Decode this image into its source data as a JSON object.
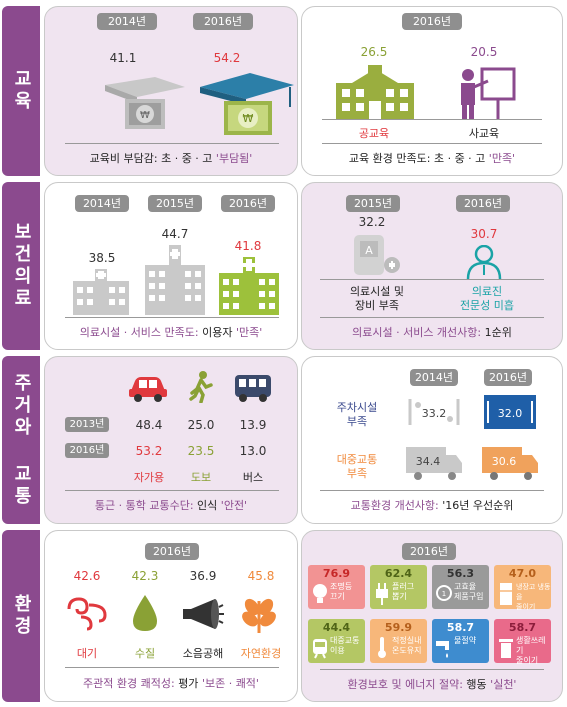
{
  "sections": {
    "edu": {
      "tab": "교육",
      "left": {
        "year1": "2014년",
        "year2": "2016년",
        "val1": "41.1",
        "val2": "54.2",
        "caption_prefix": "교육비 부담감: ",
        "caption_mid": "초 · 중 · 고 ",
        "caption_hl": "'부담됨'"
      },
      "right": {
        "year": "2016년",
        "val1": "26.5",
        "val2": "20.5",
        "label1": "공교육",
        "label2": "사교육",
        "caption_prefix": "교육 환경 만족도: ",
        "caption_mid": "초 · 중 · 고 ",
        "caption_hl": "'만족'"
      }
    },
    "health": {
      "tab": "보건의료",
      "left": {
        "year1": "2014년",
        "year2": "2015년",
        "year3": "2016년",
        "val1": "38.5",
        "val2": "44.7",
        "val3": "41.8",
        "caption_prefix": "의료시설 · 서비스 만족도: ",
        "caption_mid": "이용자 ",
        "caption_hl": "'만족'"
      },
      "right": {
        "year1": "2015년",
        "year2": "2016년",
        "val1": "32.2",
        "val2": "30.7",
        "label1_line1": "의료시설 및",
        "label1_line2": "장비 부족",
        "label2_line1": "의료진",
        "label2_line2": "전문성 미흡",
        "caption_prefix": "의료시설 · 서비스 개선사항: ",
        "caption_hl": "1순위"
      }
    },
    "transport": {
      "tab": "주거와 교통",
      "left": {
        "row1_year": "2013년",
        "row2_year": "2016년",
        "row1": [
          "48.4",
          "25.0",
          "13.9"
        ],
        "row2": [
          "53.2",
          "23.5",
          "13.0"
        ],
        "labels": [
          "자가용",
          "도보",
          "버스"
        ],
        "caption_prefix": "통근 · 통학 교통수단: ",
        "caption_mid": "인식 ",
        "caption_hl": "'안전'"
      },
      "right": {
        "year1": "2014년",
        "year2": "2016년",
        "item1_line1": "주차시설",
        "item1_line2": "부족",
        "item2_line1": "대중교통",
        "item2_line2": "부족",
        "v11": "33.2",
        "v12": "32.0",
        "v21": "34.4",
        "v22": "30.6",
        "caption_prefix": "교통환경 개선사항: ",
        "caption_hl": "'16년 우선순위"
      }
    },
    "env": {
      "tab": "환경",
      "left": {
        "year": "2016년",
        "vals": [
          "42.6",
          "42.3",
          "36.9",
          "45.8"
        ],
        "labels": [
          "대기",
          "수질",
          "소음공해",
          "자연환경"
        ],
        "caption_prefix": "주관적 환경 쾌적성: ",
        "caption_mid": "평가 ",
        "caption_hl": "'보존 · 쾌적'"
      },
      "right": {
        "year": "2016년",
        "cells": [
          {
            "v": "76.9",
            "t1": "조명등",
            "t2": "끄기"
          },
          {
            "v": "62.4",
            "t1": "플러그",
            "t2": "뽑기"
          },
          {
            "v": "56.3",
            "t1": "고효율",
            "t2": "제품구입"
          },
          {
            "v": "47.0",
            "t1": "냉장고 냉동을",
            "t2": "줄이기"
          },
          {
            "v": "44.4",
            "t1": "대중교통",
            "t2": "이용"
          },
          {
            "v": "59.9",
            "t1": "적정실내",
            "t2": "온도유지"
          },
          {
            "v": "58.7",
            "t1": "물절약",
            "t2": ""
          },
          {
            "v": "58.7",
            "t1": "생활쓰레기",
            "t2": "줄이기"
          }
        ],
        "caption_prefix": "환경보호 및 에너지 절약: ",
        "caption_mid": "행동 ",
        "caption_hl": "'실천'"
      }
    }
  },
  "colors": {
    "purple": "#8b4a8e",
    "red": "#e0393e",
    "green": "#8aa135",
    "orange": "#f08a3c",
    "teal": "#1aa3a6",
    "gray": "#8f8f8f"
  }
}
